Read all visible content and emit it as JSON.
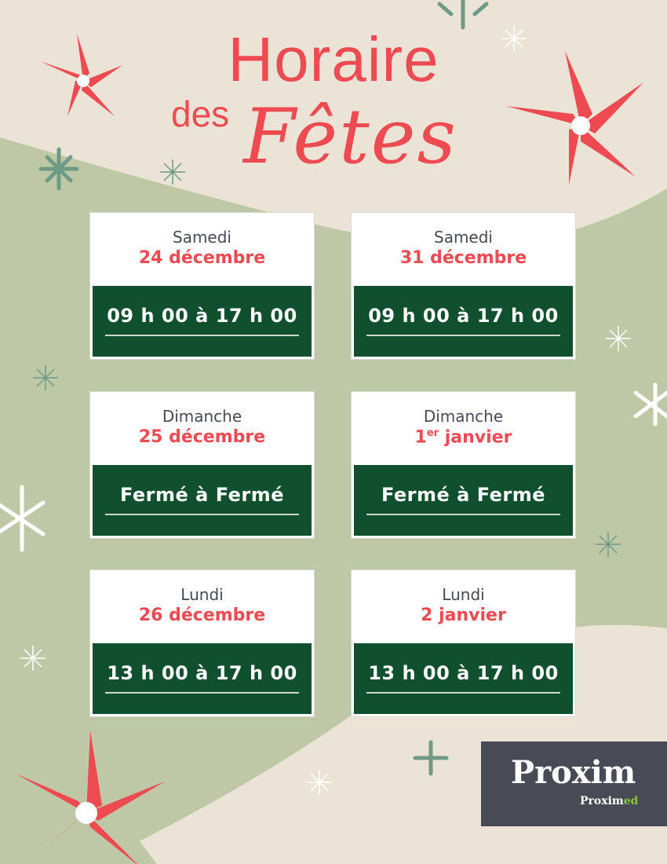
{
  "header": {
    "line1": "Horaire",
    "line2": "des",
    "line3": "Fêtes"
  },
  "cards": [
    {
      "day": "Samedi",
      "date": "24 décembre",
      "date_sup": "",
      "hours": "09 h 00 à 17 h 00"
    },
    {
      "day": "Samedi",
      "date": "31 décembre",
      "date_sup": "",
      "hours": "09 h 00 à 17 h 00"
    },
    {
      "day": "Dimanche",
      "date": "25 décembre",
      "date_sup": "",
      "hours": "Fermé à Fermé"
    },
    {
      "day": "Dimanche",
      "date": "1",
      "date_sup": "er",
      "date_rest": " janvier",
      "hours": "Fermé à Fermé"
    },
    {
      "day": "Lundi",
      "date": "26 décembre",
      "date_sup": "",
      "hours": "13 h 00 à 17 h 00"
    },
    {
      "day": "Lundi",
      "date": "2 janvier",
      "date_sup": "",
      "hours": "13 h 00 à 17 h 00"
    }
  ],
  "logo": {
    "name": "Proxim",
    "sub_prefix": "Proxim",
    "sub_suffix": "ed"
  },
  "colors": {
    "accent_red": "#ee4a52",
    "dark_green": "#10502f",
    "background": "#ebe4d6",
    "sage": "#bfc8a6",
    "logo_bg": "#484b55",
    "logo_green": "#8cc63f"
  }
}
